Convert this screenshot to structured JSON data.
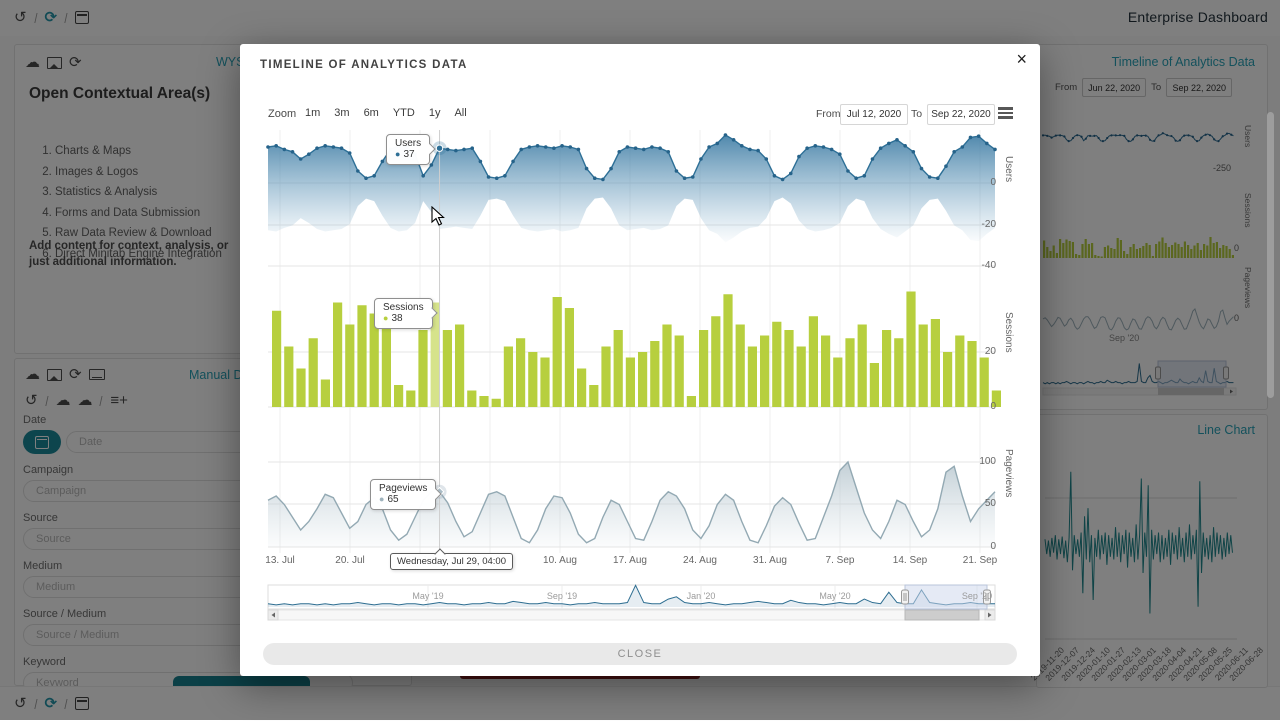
{
  "app": {
    "title": "Enterprise Dashboard"
  },
  "icon_glyphs": {
    "history": "↺",
    "sync": "⟳",
    "refresh": "⟳",
    "separator": "/",
    "cloud": "☁",
    "cloud-upload": "☁",
    "playlist-add": "≡+",
    "right-arrow": "▸",
    "left-arrow": "◂"
  },
  "toolbars": {
    "top": [
      "history",
      "separator",
      "sync",
      "separator",
      "calendar"
    ],
    "bottom": [
      "history",
      "separator",
      "sync",
      "separator",
      "calendar"
    ]
  },
  "left_panel": {
    "card1": {
      "icons": [
        "cloud",
        "image",
        "refresh"
      ],
      "link": "WYS",
      "heading": "Open Contextual Area(s)",
      "items": [
        "Charts & Maps",
        "Images & Logos",
        "Statistics & Analysis",
        "Forms and Data Submission",
        "Raw Data Review & Download",
        "Direct Minitab Engine Integration"
      ],
      "note": "Add content for context, analysis, or just additional information."
    },
    "card2": {
      "icons": [
        "cloud",
        "image",
        "refresh",
        "keyboard"
      ],
      "icons2": [
        "history",
        "separator",
        "cloud-upload",
        "cloud",
        "separator",
        "playlist-add"
      ],
      "link": "Manual Da",
      "fields": [
        {
          "label": "Date",
          "placeholder": "Date",
          "has_button": true
        },
        {
          "label": "Campaign",
          "placeholder": "Campaign"
        },
        {
          "label": "Source",
          "placeholder": "Source"
        },
        {
          "label": "Medium",
          "placeholder": "Medium"
        },
        {
          "label": "Source / Medium",
          "placeholder": "Source / Medium"
        },
        {
          "label": "Keyword",
          "placeholder": "Keyword"
        }
      ]
    }
  },
  "right_panel": {
    "card1": {
      "link": "Timeline of Analytics Data",
      "from_label": "From",
      "from_value": "Jun 22, 2020",
      "to_label": "To",
      "to_value": "Sep 22, 2020",
      "axis": {
        "users_title": "Users",
        "users_min": "-250",
        "sessions_title": "Sessions",
        "sessions_zero": "0",
        "pageviews_title": "Pageviews",
        "pageviews_zero": "0",
        "x_label": "Sep '20"
      }
    },
    "card2": {
      "link": "Line Chart",
      "x_labels": [
        "2019-11-20",
        "2019-12-07",
        "2019-12-24",
        "2020-01-10",
        "2020-01-27",
        "2020-02-13",
        "2020-03-01",
        "2020-03-18",
        "2020-04-04",
        "2020-04-21",
        "2020-05-08",
        "2020-05-25",
        "2020-06-11",
        "2020-06-28"
      ]
    }
  },
  "modal": {
    "title": "TIMELINE OF ANALYTICS DATA",
    "close_icon": "×",
    "range_selector": {
      "zoom_label": "Zoom",
      "buttons": [
        "1m",
        "3m",
        "6m",
        "YTD",
        "1y",
        "All"
      ],
      "from_label": "From",
      "from_value": "Jul 12, 2020",
      "to_label": "To",
      "to_value": "Sep 22, 2020"
    },
    "tooltips": {
      "users": {
        "series": "Users",
        "value": "37"
      },
      "sessions": {
        "series": "Sessions",
        "value": "38"
      },
      "pageviews": {
        "series": "Pageviews",
        "value": "65"
      },
      "crosshair_date": "Wednesday, Jul 29, 04:00"
    },
    "close_button": "CLOSE"
  },
  "colors": {
    "accent_teal": "#28a3b8",
    "users_blue": "#2d6f96",
    "sessions_green": "#b7cf3e",
    "sessions_hover": "#d6e38b",
    "pageviews_gray": "#9fb3bd",
    "navigator_blue": "#2e6e91",
    "line_chart_teal": "#20898f",
    "button_teal": "#17808f",
    "button_red": "#7e2020"
  },
  "chart_data": [
    {
      "id": "timeline-of-analytics-data",
      "type": "mixed-stock (area + column + area)",
      "x_labels": [
        "13. Jul",
        "20. Jul",
        "27. Jul",
        "3. Aug",
        "10. Aug",
        "17. Aug",
        "24. Aug",
        "31. Aug",
        "7. Sep",
        "14. Sep",
        "21. Sep"
      ],
      "highlight_index": 21,
      "highlight_bar_index": 13,
      "panes": [
        {
          "title": "Users",
          "type": "area",
          "y_ticks": [
            "0",
            "-20",
            "-40"
          ],
          "values": [
            30,
            31,
            28,
            26,
            20,
            24,
            29,
            31,
            30,
            29,
            25,
            10,
            4,
            6,
            18,
            28,
            31,
            30,
            24,
            6,
            15,
            29,
            28,
            27,
            28,
            29,
            18,
            5,
            4,
            6,
            18,
            28,
            30,
            31,
            30,
            29,
            31,
            30,
            28,
            12,
            4,
            3,
            12,
            26,
            30,
            29,
            28,
            30,
            29,
            26,
            10,
            4,
            5,
            20,
            30,
            33,
            40,
            36,
            31,
            28,
            27,
            20,
            6,
            3,
            8,
            22,
            29,
            31,
            30,
            28,
            24,
            10,
            4,
            6,
            20,
            29,
            33,
            36,
            31,
            26,
            12,
            5,
            4,
            14,
            26,
            30,
            38,
            39,
            33,
            28
          ]
        },
        {
          "title": "Sessions",
          "type": "column",
          "y_ticks": [
            "20",
            "0"
          ],
          "values": [
            35,
            22,
            14,
            25,
            10,
            38,
            30,
            37,
            34,
            32,
            8,
            6,
            28,
            38,
            28,
            30,
            6,
            4,
            3,
            22,
            25,
            20,
            18,
            40,
            36,
            14,
            8,
            22,
            28,
            18,
            20,
            24,
            30,
            26,
            4,
            28,
            33,
            41,
            30,
            22,
            26,
            31,
            28,
            22,
            33,
            26,
            18,
            25,
            30,
            16,
            28,
            25,
            42,
            30,
            32,
            20,
            26,
            24,
            18,
            6
          ]
        },
        {
          "title": "Pageviews",
          "type": "area",
          "y_ticks": [
            "100",
            "50",
            "0"
          ],
          "values": [
            55,
            60,
            50,
            35,
            20,
            30,
            45,
            62,
            58,
            40,
            22,
            30,
            50,
            58,
            45,
            20,
            8,
            15,
            35,
            55,
            65,
            65,
            52,
            30,
            12,
            18,
            40,
            62,
            65,
            60,
            35,
            10,
            5,
            20,
            45,
            60,
            58,
            40,
            15,
            5,
            10,
            35,
            55,
            50,
            30,
            10,
            8,
            30,
            55,
            65,
            60,
            45,
            20,
            10,
            25,
            50,
            62,
            55,
            30,
            8,
            5,
            25,
            48,
            58,
            50,
            28,
            8,
            10,
            35,
            60,
            90,
            100,
            70,
            40,
            20,
            10,
            30,
            55,
            50,
            30,
            12,
            20,
            45,
            88,
            95,
            60,
            30,
            45,
            55,
            65
          ]
        }
      ],
      "navigator": {
        "labels": [
          "May '19",
          "Sep '19",
          "Jan '20",
          "May '20",
          "Sep '20"
        ],
        "values": [
          2,
          1,
          2,
          1,
          2,
          2,
          1,
          2,
          1,
          2,
          2,
          3,
          2,
          1,
          2,
          2,
          1,
          2,
          2,
          1,
          2,
          3,
          2,
          2,
          1,
          2,
          2,
          3,
          2,
          2,
          4,
          3,
          2,
          2,
          3,
          2,
          2,
          1,
          2,
          2,
          3,
          2,
          2,
          2,
          3,
          18,
          3,
          2,
          2,
          6,
          8,
          3,
          2,
          2,
          3,
          2,
          1,
          2,
          2,
          3,
          4,
          3,
          2,
          2,
          5,
          3,
          2,
          2,
          1,
          2,
          3,
          2,
          2,
          6,
          3,
          2,
          12,
          3,
          2,
          2,
          14,
          3,
          2,
          1,
          2,
          2,
          3,
          2,
          2,
          2
        ]
      }
    },
    {
      "id": "line-chart",
      "type": "line",
      "x_labels": [
        "2019-11-20",
        "2019-12-07",
        "2019-12-24",
        "2020-01-10",
        "2020-01-27",
        "2020-02-13",
        "2020-03-01",
        "2020-03-18",
        "2020-04-04",
        "2020-04-21",
        "2020-05-08",
        "2020-05-25",
        "2020-06-11",
        "2020-06-28"
      ],
      "values": [
        5,
        -6,
        4,
        -8,
        6,
        -5,
        8,
        -10,
        5,
        -6,
        7,
        -9,
        4,
        -12,
        6,
        55,
        -18,
        8,
        -6,
        5,
        -8,
        10,
        -35,
        22,
        -10,
        28,
        -12,
        8,
        -40,
        6,
        -8,
        12,
        -10,
        8,
        -6,
        10,
        -14,
        8,
        -8,
        6,
        -10,
        14,
        -8,
        10,
        -12,
        8,
        -6,
        12,
        -16,
        10,
        -8,
        6,
        -12,
        16,
        -10,
        8,
        50,
        -20,
        10,
        -8,
        45,
        -50,
        12,
        -10,
        8,
        -6,
        10,
        -12,
        8,
        -10,
        6,
        -8,
        12,
        -14,
        10,
        -6,
        8,
        -10,
        14,
        -8,
        6,
        -12,
        10,
        -8,
        16,
        -10,
        8,
        -6,
        12,
        -45,
        48,
        -20,
        10,
        -8,
        6,
        -10,
        8,
        -12,
        14,
        -8,
        10,
        -6,
        8,
        -10,
        6,
        -8,
        10,
        -6,
        8,
        -5
      ]
    }
  ]
}
